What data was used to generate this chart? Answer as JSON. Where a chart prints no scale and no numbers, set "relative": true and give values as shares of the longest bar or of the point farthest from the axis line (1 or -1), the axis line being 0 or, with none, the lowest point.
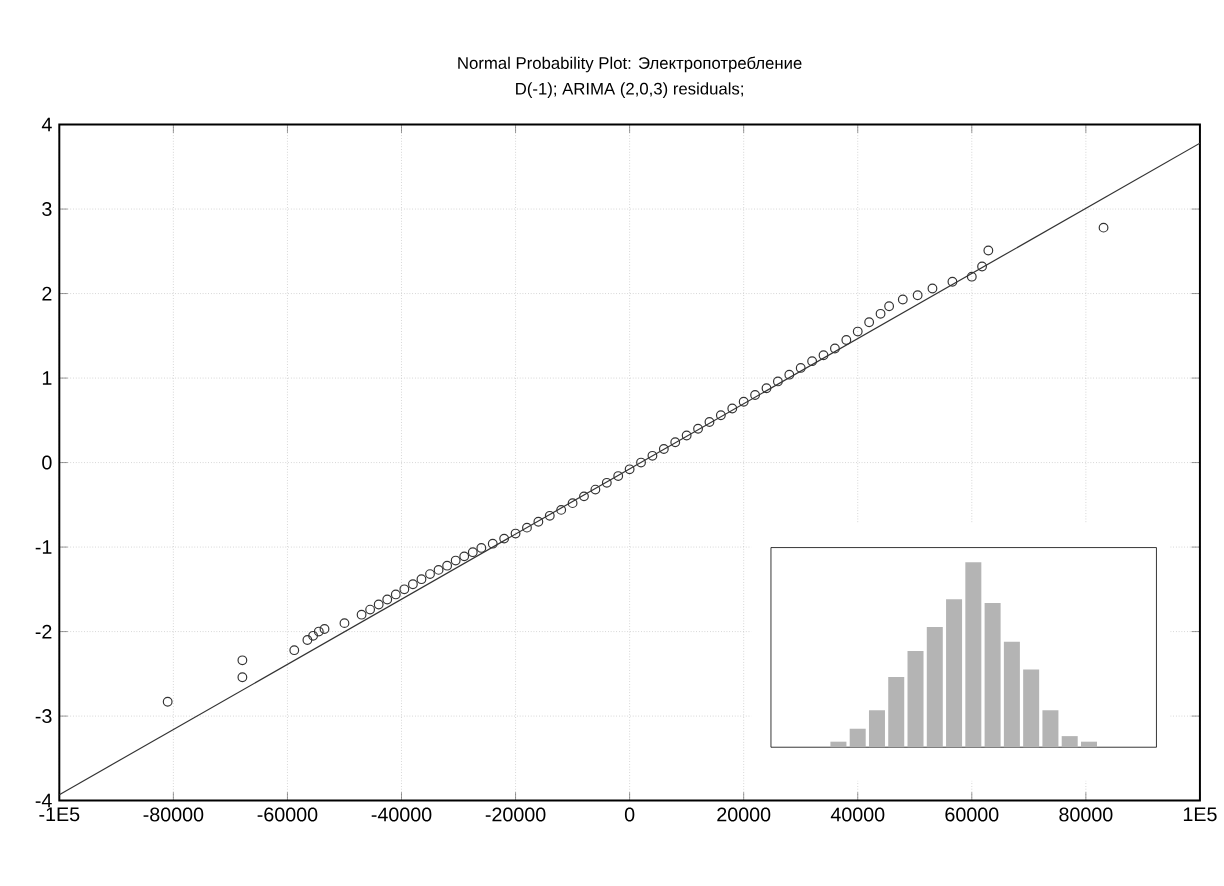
{
  "chart_data": [
    {
      "type": "scatter",
      "title": "Normal Probability Plot: Электропотребление",
      "subtitle": "D(-1); ARIMA (2,0,3) residuals;",
      "xlim": [
        -100000,
        100000
      ],
      "ylim": [
        -4,
        4
      ],
      "xticks": [
        {
          "value": -100000,
          "label": "-1E5"
        },
        -80000,
        -60000,
        -40000,
        -20000,
        0,
        20000,
        40000,
        60000,
        80000,
        {
          "value": 100000,
          "label": "1E5"
        }
      ],
      "yticks": [
        -4,
        -3,
        -2,
        -1,
        0,
        1,
        2,
        3,
        4
      ],
      "grid": true,
      "marker": "circle",
      "series": [
        {
          "color": "#333333",
          "x": [
            -81000,
            -67900,
            -67900,
            -58800,
            -56500,
            -55500,
            -54500,
            -53500,
            -50000,
            -47000,
            -45500,
            -44000,
            -42500,
            -41000,
            -39500,
            -38000,
            -36500,
            -35000,
            -33500,
            -32000,
            -30500,
            -29000,
            -27500,
            -26000,
            -24000,
            -22000,
            -20000,
            -18000,
            -16000,
            -14000,
            -12000,
            -10000,
            -8000,
            -6000,
            -4000,
            -2000,
            0,
            2000,
            4000,
            6000,
            8000,
            10000,
            12000,
            14000,
            16000,
            18000,
            20000,
            22000,
            24000,
            26000,
            28000,
            30000,
            32000,
            34000,
            36000,
            38000,
            40000,
            42000,
            44000,
            45500,
            47900,
            50500,
            53100,
            56600,
            60000,
            61800,
            62900,
            83100
          ],
          "values": [
            -2.83,
            -2.34,
            -2.54,
            -2.22,
            -2.1,
            -2.05,
            -2.0,
            -1.97,
            -1.9,
            -1.8,
            -1.74,
            -1.68,
            -1.62,
            -1.56,
            -1.5,
            -1.44,
            -1.38,
            -1.32,
            -1.27,
            -1.22,
            -1.16,
            -1.11,
            -1.06,
            -1.01,
            -0.96,
            -0.9,
            -0.84,
            -0.77,
            -0.7,
            -0.63,
            -0.56,
            -0.48,
            -0.4,
            -0.32,
            -0.24,
            -0.16,
            -0.08,
            0.0,
            0.08,
            0.16,
            0.24,
            0.32,
            0.4,
            0.48,
            0.56,
            0.64,
            0.72,
            0.8,
            0.88,
            0.96,
            1.04,
            1.12,
            1.2,
            1.27,
            1.35,
            1.45,
            1.55,
            1.66,
            1.76,
            1.85,
            1.93,
            1.98,
            2.06,
            2.14,
            2.2,
            2.32,
            2.51,
            2.78
          ]
        },
        {
          "type": "line",
          "marker": "none",
          "color": "#333333",
          "x": [
            -100000,
            100000
          ],
          "values": [
            -3.93,
            3.78
          ]
        }
      ]
    },
    {
      "type": "bar",
      "relative": true,
      "color": "#b4b4b4",
      "categories": [
        null,
        null,
        null,
        null,
        null,
        null,
        null,
        null,
        null,
        null,
        null,
        null,
        null,
        null
      ],
      "values": [
        0.03,
        0.1,
        0.2,
        0.38,
        0.52,
        0.65,
        0.8,
        1.0,
        0.78,
        0.57,
        0.42,
        0.2,
        0.06,
        0.03
      ]
    }
  ]
}
